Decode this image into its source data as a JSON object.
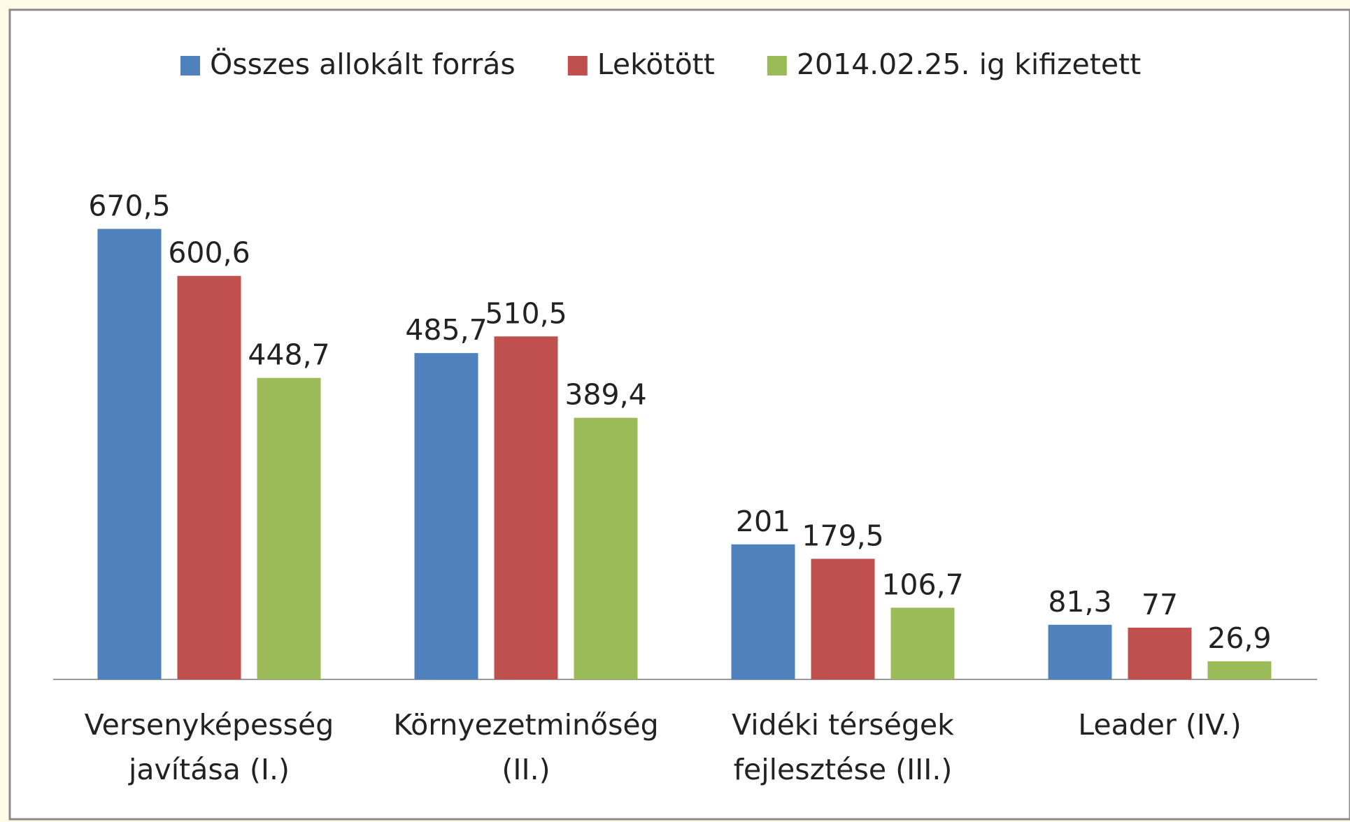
{
  "chart_data": {
    "type": "bar",
    "categories": [
      [
        "Versenyképesség",
        "javítása (I.)"
      ],
      [
        "Környezetminőség",
        "(II.)"
      ],
      [
        "Vidéki térségek",
        "fejlesztése (III.)"
      ],
      [
        "Leader (IV.)"
      ]
    ],
    "series": [
      {
        "name": "Összes allokált forrás",
        "color": "#4f81bd",
        "values": [
          670.5,
          485.7,
          201,
          81.3
        ],
        "value_labels": [
          "670,5",
          "485,7",
          "201",
          "81,3"
        ]
      },
      {
        "name": "Lekötött",
        "color": "#c0504d",
        "values": [
          600.6,
          510.5,
          179.5,
          77
        ],
        "value_labels": [
          "600,6",
          "510,5",
          "179,5",
          "77"
        ]
      },
      {
        "name": "2014.02.25. ig kifizetett",
        "color": "#9bbb59",
        "values": [
          448.7,
          389.4,
          106.7,
          26.9
        ],
        "value_labels": [
          "448,7",
          "389,4",
          "106,7",
          "26,9"
        ]
      }
    ],
    "ylim": [
      0,
      800
    ],
    "legend": "top"
  }
}
